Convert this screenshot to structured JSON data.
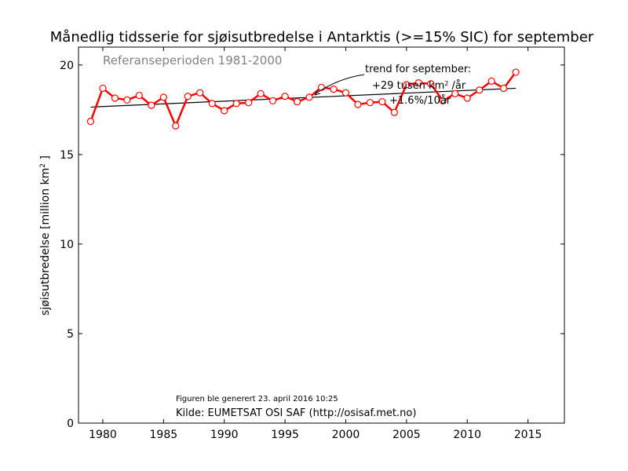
{
  "chart_data": {
    "type": "line",
    "title": "Månedlig tidsserie for sjøisutbredelse i Antarktis (>=15% SIC) for september",
    "ylabel_prefix": "sjøisutbredelse [million km",
    "ylabel_sup": "2",
    "ylabel_suffix": " ]",
    "xlabel": "",
    "xlim": [
      1978,
      2018
    ],
    "ylim": [
      0,
      21
    ],
    "x_ticks": [
      1980,
      1985,
      1990,
      1995,
      2000,
      2005,
      2010,
      2015
    ],
    "y_ticks": [
      0,
      5,
      10,
      15,
      20
    ],
    "grid": false,
    "series": [
      {
        "color": "#ff0000",
        "marker": "open-circle",
        "x": [
          1979,
          1980,
          1981,
          1982,
          1983,
          1984,
          1985,
          1986,
          1987,
          1988,
          1989,
          1990,
          1991,
          1992,
          1993,
          1994,
          1995,
          1996,
          1997,
          1998,
          1999,
          2000,
          2001,
          2002,
          2003,
          2004,
          2005,
          2006,
          2007,
          2008,
          2009,
          2010,
          2011,
          2012,
          2013,
          2014
        ],
        "y": [
          16.85,
          18.7,
          18.15,
          18.05,
          18.3,
          17.75,
          18.2,
          16.6,
          18.25,
          18.45,
          17.85,
          17.45,
          17.85,
          17.9,
          18.4,
          18.0,
          18.25,
          17.95,
          18.2,
          18.75,
          18.65,
          18.45,
          17.8,
          17.9,
          17.95,
          17.35,
          18.9,
          19.0,
          18.95,
          18.0,
          18.4,
          18.15,
          18.6,
          19.1,
          18.7,
          19.6
        ]
      }
    ],
    "trend": {
      "color": "#000000",
      "x": [
        1979,
        2014
      ],
      "y": [
        17.65,
        18.7
      ]
    },
    "annotations": {
      "reference_period": "Referanseperioden 1981-2000",
      "trend_line1": "trend for september:",
      "trend_line2_prefix": "+29 tusen km",
      "trend_line2_sup": "2",
      "trend_line2_suffix": " /år",
      "trend_line3": "+1.6%/10år",
      "generated": "Figuren ble generert 23. april 2016 10:25",
      "source": "Kilde: EUMETSAT OSI SAF (http://osisaf.met.no)"
    },
    "colors": {
      "reference_text": "#808080",
      "series": "#ff0000",
      "trend": "#000000"
    }
  }
}
